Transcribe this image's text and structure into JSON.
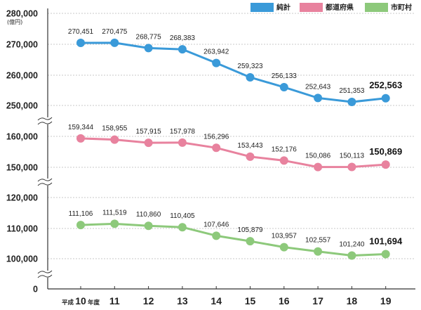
{
  "chart_data": {
    "type": "line",
    "unit_label": "(億円)",
    "categories": [
      "10",
      "11",
      "12",
      "13",
      "14",
      "15",
      "16",
      "17",
      "18",
      "19"
    ],
    "category_prefix": "平成",
    "category_suffix": "年度",
    "axis_breaks": true,
    "y_ticks": [
      "280,000",
      "270,000",
      "260,000",
      "250,000",
      "160,000",
      "150,000",
      "120,000",
      "110,000",
      "100,000",
      "0"
    ],
    "series": [
      {
        "name": "純計",
        "color": "#3a9ad9",
        "values": [
          270451,
          270475,
          268775,
          268383,
          263942,
          259323,
          256133,
          252643,
          251353,
          252563
        ],
        "labels": [
          "270,451",
          "270,475",
          "268,775",
          "268,383",
          "263,942",
          "259,323",
          "256,133",
          "252,643",
          "251,353",
          "252,563"
        ]
      },
      {
        "name": "都道府県",
        "color": "#e8829e",
        "values": [
          159344,
          158955,
          157915,
          157978,
          156296,
          153443,
          152176,
          150086,
          150113,
          150869
        ],
        "labels": [
          "159,344",
          "158,955",
          "157,915",
          "157,978",
          "156,296",
          "153,443",
          "152,176",
          "150,086",
          "150,113",
          "150,869"
        ]
      },
      {
        "name": "市町村",
        "color": "#8dc97b",
        "values": [
          111106,
          111519,
          110860,
          110405,
          107646,
          105879,
          103957,
          102557,
          101240,
          101694
        ],
        "labels": [
          "111,106",
          "111,519",
          "110,860",
          "110,405",
          "107,646",
          "105,879",
          "103,957",
          "102,557",
          "101,240",
          "101,694"
        ]
      }
    ]
  }
}
